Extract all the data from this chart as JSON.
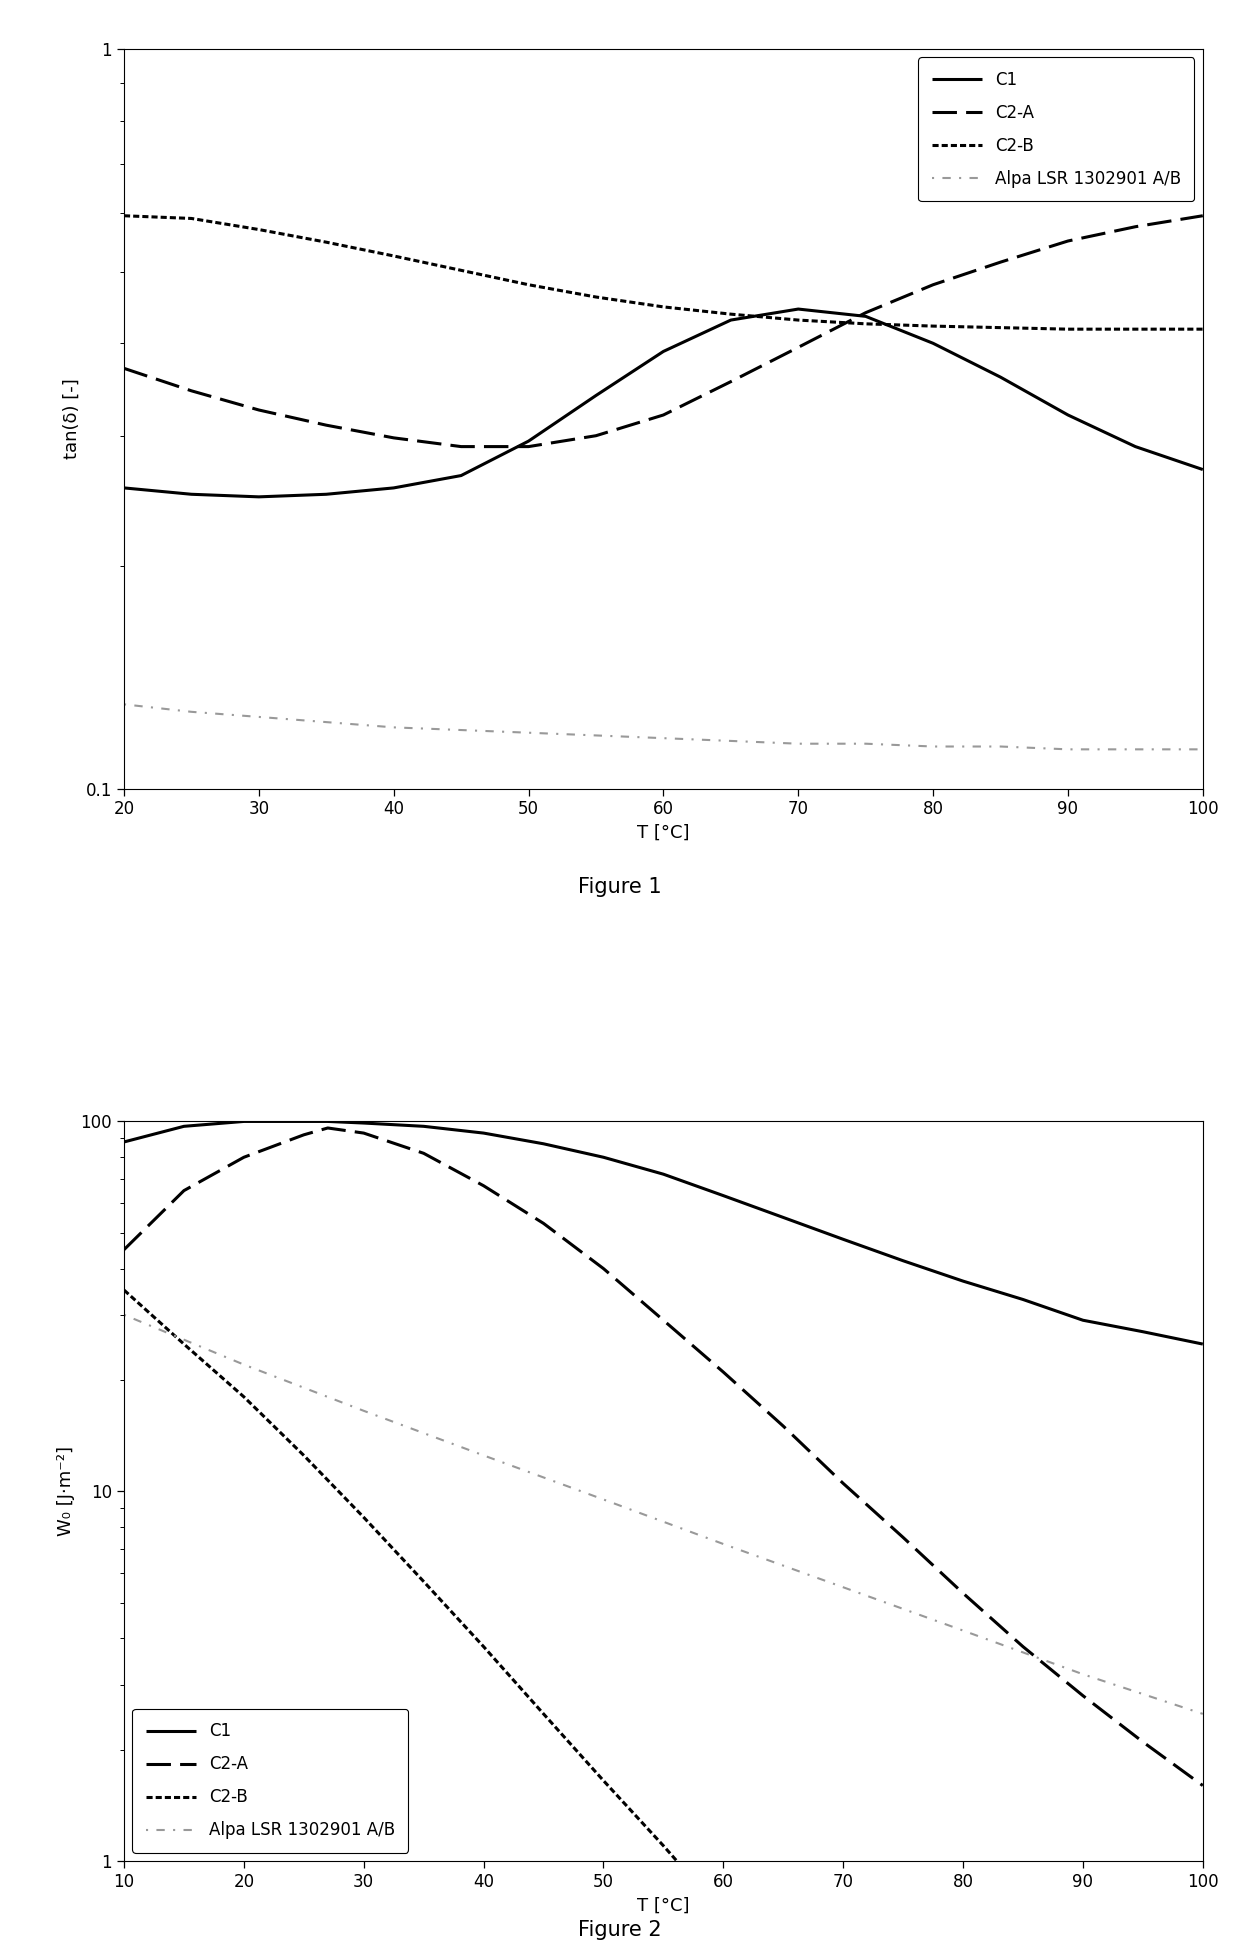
{
  "fig1": {
    "title": "Figure 1",
    "xlabel": "T [°C]",
    "ylabel": "tan(δ) [-]",
    "xlim": [
      20,
      100
    ],
    "ylim_log": [
      0.1,
      1.0
    ],
    "xticks": [
      20,
      30,
      40,
      50,
      60,
      70,
      80,
      90,
      100
    ],
    "series": {
      "C1": {
        "x": [
          20,
          25,
          30,
          35,
          40,
          45,
          50,
          55,
          60,
          65,
          70,
          75,
          80,
          85,
          90,
          95,
          100
        ],
        "y": [
          0.255,
          0.25,
          0.248,
          0.25,
          0.255,
          0.265,
          0.295,
          0.34,
          0.39,
          0.43,
          0.445,
          0.435,
          0.4,
          0.36,
          0.32,
          0.29,
          0.27
        ],
        "linestyle": "solid",
        "color": "#000000",
        "linewidth": 2.2
      },
      "C2-A": {
        "x": [
          20,
          25,
          30,
          35,
          40,
          45,
          50,
          55,
          60,
          65,
          70,
          75,
          80,
          85,
          90,
          95,
          100
        ],
        "y": [
          0.37,
          0.345,
          0.325,
          0.31,
          0.298,
          0.29,
          0.29,
          0.3,
          0.32,
          0.355,
          0.395,
          0.44,
          0.48,
          0.515,
          0.55,
          0.575,
          0.595
        ],
        "linestyle": "long_dash",
        "color": "#000000",
        "linewidth": 2.2
      },
      "C2-B": {
        "x": [
          20,
          25,
          30,
          35,
          40,
          45,
          50,
          55,
          60,
          65,
          70,
          75,
          80,
          85,
          90,
          95,
          100
        ],
        "y": [
          0.595,
          0.59,
          0.57,
          0.548,
          0.525,
          0.502,
          0.48,
          0.462,
          0.448,
          0.438,
          0.43,
          0.425,
          0.422,
          0.42,
          0.418,
          0.418,
          0.418
        ],
        "linestyle": "densely_dotted",
        "color": "#000000",
        "linewidth": 2.2
      },
      "Alpa LSR 1302901 A/B": {
        "x": [
          20,
          25,
          30,
          35,
          40,
          45,
          50,
          55,
          60,
          65,
          70,
          75,
          80,
          85,
          90,
          95,
          100
        ],
        "y": [
          0.13,
          0.127,
          0.125,
          0.123,
          0.121,
          0.12,
          0.119,
          0.118,
          0.117,
          0.116,
          0.115,
          0.115,
          0.114,
          0.114,
          0.113,
          0.113,
          0.113
        ],
        "linestyle": "sparse_dot_dash",
        "color": "#999999",
        "linewidth": 1.5
      }
    }
  },
  "fig2": {
    "title": "Figure 2",
    "xlabel": "T [°C]",
    "ylabel": "W₀ [J·m⁻²]",
    "xlim": [
      10,
      100
    ],
    "ylim_log": [
      1,
      100
    ],
    "xticks": [
      10,
      20,
      30,
      40,
      50,
      60,
      70,
      80,
      90,
      100
    ],
    "series": {
      "C1": {
        "x": [
          10,
          15,
          20,
          25,
          27,
          30,
          35,
          40,
          45,
          50,
          55,
          60,
          65,
          70,
          75,
          80,
          85,
          90,
          95,
          100
        ],
        "y": [
          88,
          97,
          100,
          100,
          100,
          99,
          97,
          93,
          87,
          80,
          72,
          63,
          55,
          48,
          42,
          37,
          33,
          29,
          27,
          25
        ],
        "linestyle": "solid",
        "color": "#000000",
        "linewidth": 2.2
      },
      "C2-A": {
        "x": [
          10,
          15,
          20,
          25,
          27,
          30,
          35,
          40,
          45,
          50,
          55,
          60,
          65,
          70,
          75,
          80,
          85,
          90,
          95,
          100
        ],
        "y": [
          45,
          65,
          80,
          92,
          96,
          93,
          82,
          67,
          53,
          40,
          29,
          21,
          15,
          10.5,
          7.5,
          5.3,
          3.8,
          2.8,
          2.1,
          1.6
        ],
        "linestyle": "long_dash",
        "color": "#000000",
        "linewidth": 2.2
      },
      "C2-B": {
        "x": [
          10,
          15,
          20,
          25,
          30,
          35,
          40,
          45,
          50,
          55,
          60,
          65,
          70,
          75,
          80,
          85,
          90,
          95,
          100
        ],
        "y": [
          35,
          25,
          18,
          12.5,
          8.5,
          5.7,
          3.8,
          2.5,
          1.65,
          1.1,
          0.72,
          0.47,
          0.31,
          0.2,
          0.13,
          0.086,
          0.056,
          0.036,
          0.023
        ],
        "linestyle": "densely_dotted",
        "color": "#000000",
        "linewidth": 2.2
      },
      "Alpa LSR 1302901 A/B": {
        "x": [
          10,
          20,
          30,
          40,
          50,
          60,
          70,
          80,
          90,
          100
        ],
        "y": [
          30,
          22,
          16.5,
          12.5,
          9.5,
          7.2,
          5.5,
          4.2,
          3.2,
          2.5
        ],
        "linestyle": "sparse_dot_dash",
        "color": "#999999",
        "linewidth": 1.5
      }
    }
  },
  "background_color": "#ffffff",
  "font_color": "#000000",
  "figure_title_fontsize": 16
}
